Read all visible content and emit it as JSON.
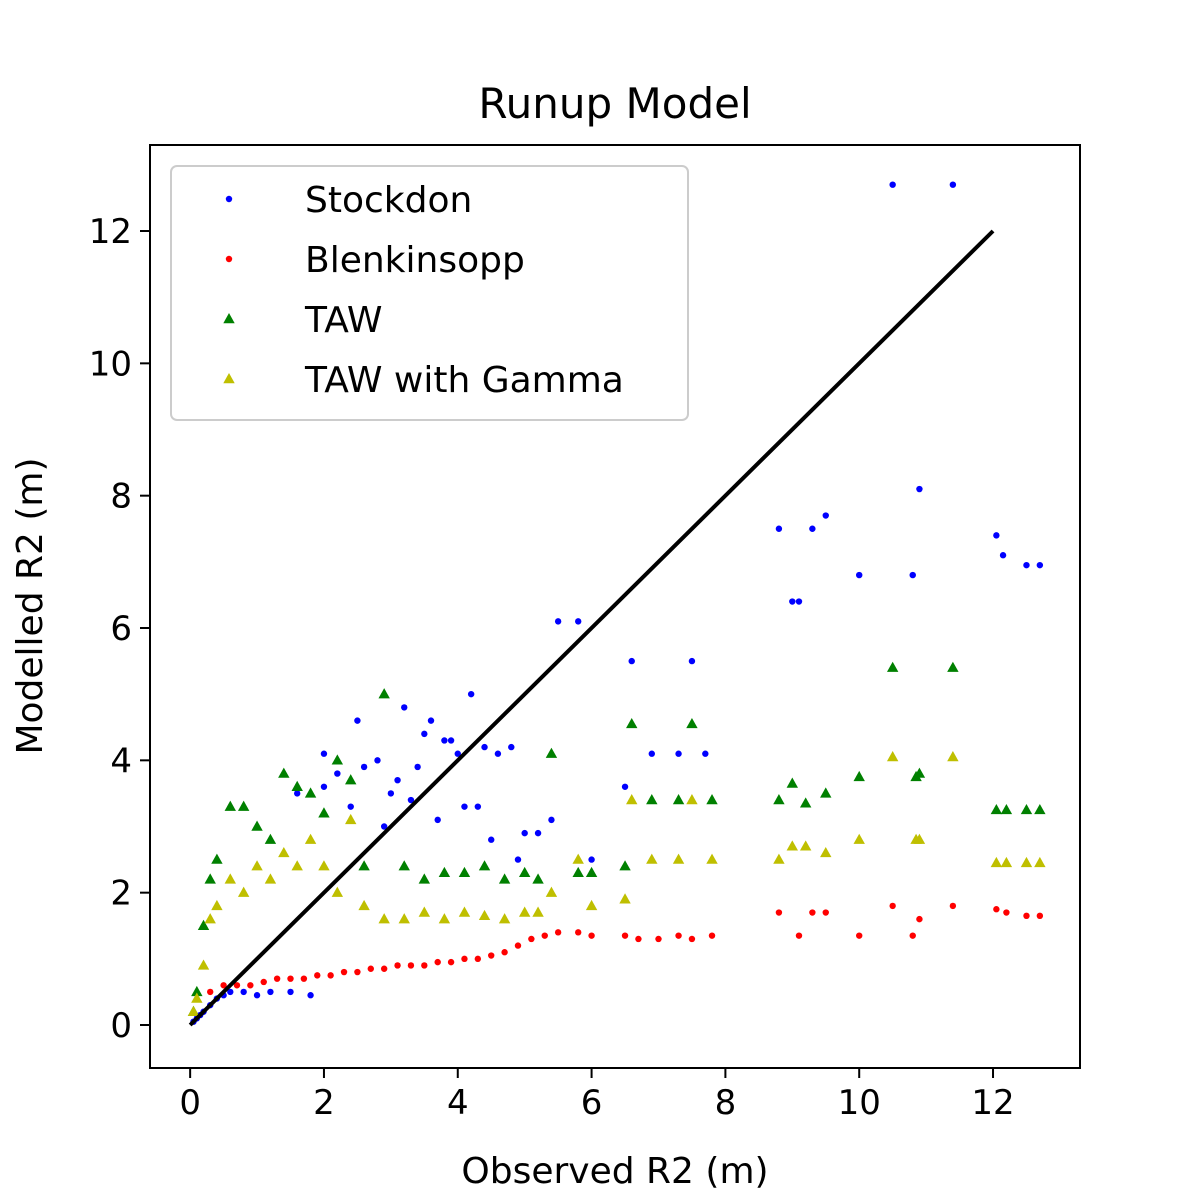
{
  "chart_data": {
    "type": "scatter",
    "title": "Runup Model",
    "xlabel": "Observed R2 (m)",
    "ylabel": "Modelled R2 (m)",
    "xlim": [
      -0.6,
      13.3
    ],
    "ylim": [
      -0.65,
      13.3
    ],
    "xticks": [
      0,
      2,
      4,
      6,
      8,
      10,
      12
    ],
    "yticks": [
      0,
      2,
      4,
      6,
      8,
      10,
      12
    ],
    "legend_position": "upper-left",
    "grid": false,
    "reference_line": {
      "x": [
        0,
        12
      ],
      "y": [
        0,
        12
      ],
      "color": "#000000"
    },
    "series": [
      {
        "name": "Stockdon",
        "marker": "dot",
        "color": "#0000ff",
        "x": [
          0.05,
          0.1,
          0.15,
          0.2,
          0.3,
          0.4,
          0.5,
          0.6,
          0.8,
          1.0,
          1.2,
          1.5,
          1.8,
          2.0,
          2.2,
          2.5,
          2.8,
          3.0,
          3.2,
          3.4,
          3.6,
          3.8,
          4.0,
          4.2,
          4.4,
          4.6,
          4.8,
          5.0,
          5.2,
          5.4,
          5.5,
          5.8,
          6.0,
          6.5,
          6.6,
          6.9,
          7.3,
          7.5,
          7.7,
          8.8,
          9.0,
          9.1,
          9.3,
          9.5,
          10.0,
          10.5,
          10.8,
          10.9,
          11.4,
          12.05,
          12.15,
          12.5,
          12.7,
          1.6,
          2.0,
          2.4,
          2.9,
          3.3,
          3.7,
          4.1,
          4.5,
          4.9,
          3.5,
          3.9,
          4.3,
          2.6,
          3.1
        ],
        "y": [
          0.05,
          0.1,
          0.15,
          0.2,
          0.3,
          0.4,
          0.45,
          0.5,
          0.5,
          0.45,
          0.5,
          0.5,
          0.45,
          4.1,
          3.8,
          4.6,
          4.0,
          3.5,
          4.8,
          3.9,
          4.6,
          4.3,
          4.1,
          5.0,
          4.2,
          4.1,
          4.2,
          2.9,
          2.9,
          3.1,
          6.1,
          6.1,
          2.5,
          3.6,
          5.5,
          4.1,
          4.1,
          5.5,
          4.1,
          7.5,
          6.4,
          6.4,
          7.5,
          7.7,
          6.8,
          12.7,
          6.8,
          8.1,
          12.7,
          7.4,
          7.1,
          6.95,
          6.95,
          3.5,
          3.6,
          3.3,
          3.0,
          3.4,
          3.1,
          3.3,
          2.8,
          2.5,
          4.4,
          4.3,
          3.3,
          3.9,
          3.7
        ]
      },
      {
        "name": "Blenkinsopp",
        "marker": "dot",
        "color": "#ff0000",
        "x": [
          0.3,
          0.5,
          0.7,
          0.9,
          1.1,
          1.3,
          1.5,
          1.7,
          1.9,
          2.1,
          2.3,
          2.5,
          2.7,
          2.9,
          3.1,
          3.3,
          3.5,
          3.7,
          3.9,
          4.1,
          4.3,
          4.5,
          4.7,
          4.9,
          5.1,
          5.3,
          5.5,
          5.8,
          6.0,
          6.5,
          6.7,
          7.0,
          7.3,
          7.5,
          7.8,
          8.8,
          9.1,
          9.3,
          9.5,
          10.0,
          10.5,
          10.8,
          10.9,
          11.4,
          12.05,
          12.2,
          12.5,
          12.7
        ],
        "y": [
          0.5,
          0.6,
          0.6,
          0.6,
          0.65,
          0.7,
          0.7,
          0.7,
          0.75,
          0.75,
          0.8,
          0.8,
          0.85,
          0.85,
          0.9,
          0.9,
          0.9,
          0.95,
          0.95,
          1.0,
          1.0,
          1.05,
          1.1,
          1.2,
          1.3,
          1.35,
          1.4,
          1.4,
          1.35,
          1.35,
          1.3,
          1.3,
          1.35,
          1.3,
          1.35,
          1.7,
          1.35,
          1.7,
          1.7,
          1.35,
          1.8,
          1.35,
          1.6,
          1.8,
          1.75,
          1.7,
          1.65,
          1.65
        ]
      },
      {
        "name": "TAW",
        "marker": "triangle",
        "color": "#008000",
        "x": [
          0.05,
          0.1,
          0.2,
          0.3,
          0.4,
          0.6,
          0.8,
          1.0,
          1.2,
          1.4,
          1.6,
          1.8,
          2.0,
          2.2,
          2.4,
          2.6,
          2.9,
          3.2,
          3.5,
          3.8,
          4.1,
          4.4,
          4.7,
          5.0,
          5.2,
          5.4,
          5.8,
          6.0,
          6.5,
          6.6,
          6.9,
          7.3,
          7.5,
          7.8,
          8.8,
          9.0,
          9.2,
          9.5,
          10.0,
          10.5,
          10.85,
          10.9,
          11.4,
          12.05,
          12.2,
          12.5,
          12.7
        ],
        "y": [
          0.2,
          0.5,
          1.5,
          2.2,
          2.5,
          3.3,
          3.3,
          3.0,
          2.8,
          3.8,
          3.6,
          3.5,
          3.2,
          4.0,
          3.7,
          2.4,
          5.0,
          2.4,
          2.2,
          2.3,
          2.3,
          2.4,
          2.2,
          2.3,
          2.2,
          4.1,
          2.3,
          2.3,
          2.4,
          4.55,
          3.4,
          3.4,
          4.55,
          3.4,
          3.4,
          3.65,
          3.35,
          3.5,
          3.75,
          5.4,
          3.75,
          3.8,
          5.4,
          3.25,
          3.25,
          3.25,
          3.25
        ]
      },
      {
        "name": "TAW with Gamma",
        "marker": "triangle",
        "color": "#bfbf00",
        "x": [
          0.05,
          0.1,
          0.2,
          0.3,
          0.4,
          0.6,
          0.8,
          1.0,
          1.2,
          1.4,
          1.6,
          1.8,
          2.0,
          2.2,
          2.4,
          2.6,
          2.9,
          3.2,
          3.5,
          3.8,
          4.1,
          4.4,
          4.7,
          5.0,
          5.2,
          5.4,
          5.8,
          6.0,
          6.5,
          6.6,
          6.9,
          7.3,
          7.5,
          7.8,
          8.8,
          9.0,
          9.2,
          9.5,
          10.0,
          10.5,
          10.85,
          10.9,
          11.4,
          12.05,
          12.2,
          12.5,
          12.7
        ],
        "y": [
          0.2,
          0.4,
          0.9,
          1.6,
          1.8,
          2.2,
          2.0,
          2.4,
          2.2,
          2.6,
          2.4,
          2.8,
          2.4,
          2.0,
          3.1,
          1.8,
          1.6,
          1.6,
          1.7,
          1.6,
          1.7,
          1.65,
          1.6,
          1.7,
          1.7,
          2.0,
          2.5,
          1.8,
          1.9,
          3.4,
          2.5,
          2.5,
          3.4,
          2.5,
          2.5,
          2.7,
          2.7,
          2.6,
          2.8,
          4.05,
          2.8,
          2.8,
          4.05,
          2.45,
          2.45,
          2.45,
          2.45
        ]
      }
    ]
  }
}
